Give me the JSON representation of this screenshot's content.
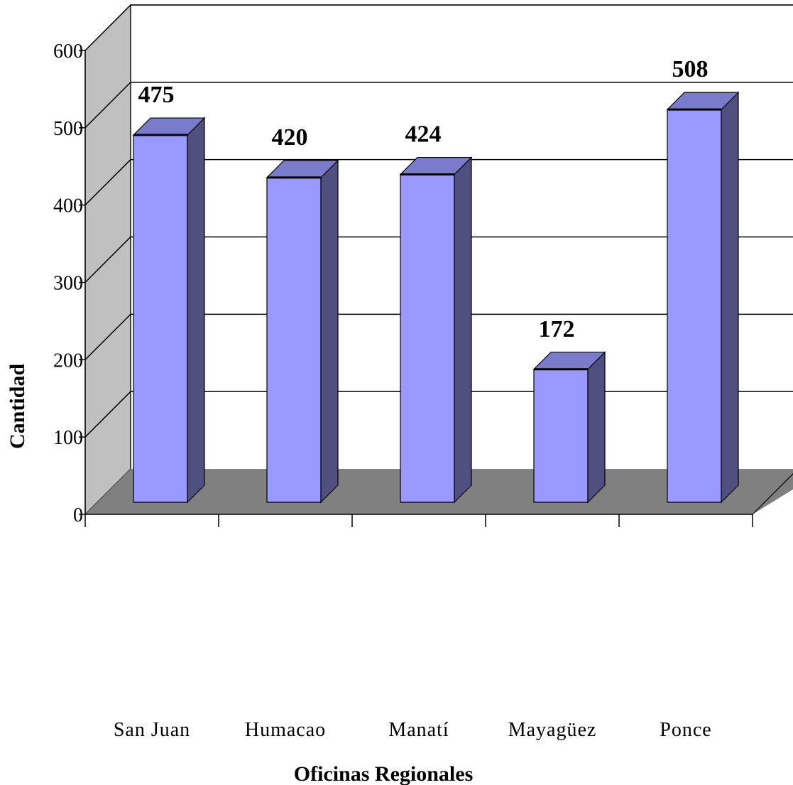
{
  "chart_data": {
    "type": "bar",
    "title": "",
    "xlabel": "Oficinas Regionales",
    "ylabel": "Cantidad",
    "categories": [
      "San Juan",
      "Humacao",
      "Manatí",
      "Mayagüez",
      "Ponce"
    ],
    "values": [
      475,
      420,
      424,
      172,
      508
    ],
    "ylim": [
      0,
      600
    ],
    "yticks": [
      0,
      100,
      200,
      300,
      400,
      500,
      600
    ],
    "grid": true,
    "style": "3d-column",
    "colors": {
      "bar_front": "#9999ff",
      "bar_top": "#7b7bcc",
      "bar_side": "#4f4f80",
      "back_wall": "#ffffff",
      "side_wall": "#c0c0c0",
      "floor": "#808080",
      "gridline": "#000000"
    }
  }
}
